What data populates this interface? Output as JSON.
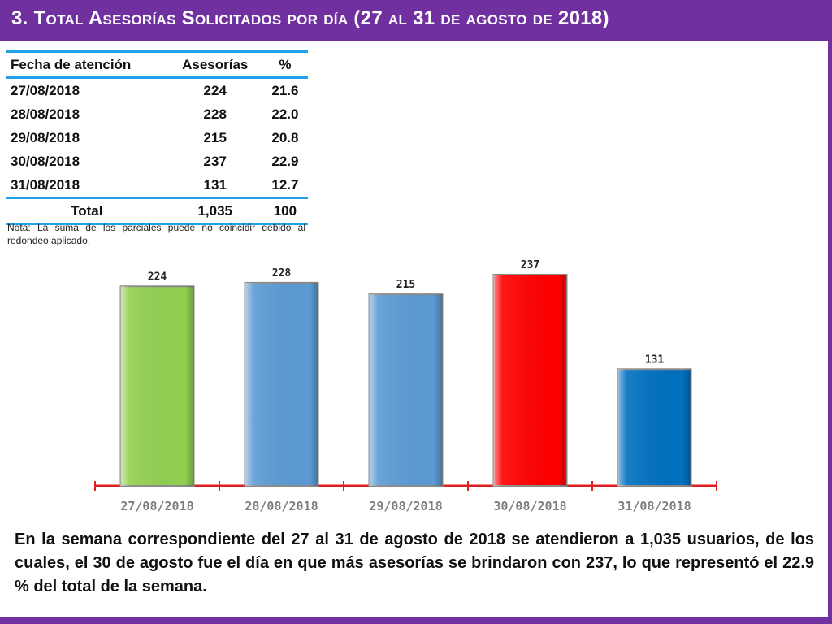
{
  "title": "3.  Total Asesorías Solicitados por día  (27 al 31 de agosto de 2018)",
  "table": {
    "headers": [
      "Fecha de atención",
      "Asesorías",
      "%"
    ],
    "rows": [
      [
        "27/08/2018",
        "224",
        "21.6"
      ],
      [
        "28/08/2018",
        "228",
        "22.0"
      ],
      [
        "29/08/2018",
        "215",
        "20.8"
      ],
      [
        "30/08/2018",
        "237",
        "22.9"
      ],
      [
        "31/08/2018",
        "131",
        "12.7"
      ]
    ],
    "total": [
      "Total",
      "1,035",
      "100"
    ]
  },
  "note": "Nota: La suma de los parciales puede no coincidir debido al redondeo aplicado.",
  "chart_data": {
    "type": "bar",
    "categories": [
      "27/08/2018",
      "28/08/2018",
      "29/08/2018",
      "30/08/2018",
      "31/08/2018"
    ],
    "values": [
      224,
      228,
      215,
      237,
      131
    ],
    "data_labels": [
      "224",
      "228",
      "215",
      "237",
      "131"
    ],
    "colors": [
      "#92d050",
      "#5b9bd5",
      "#5b9bd5",
      "#ff0000",
      "#0070c0"
    ],
    "axis_color": "#e02020",
    "grid": false,
    "legend": "none",
    "ylim": [
      0,
      237
    ]
  },
  "summary": "En la semana correspondiente del 27 al 31 de agosto de 2018 se atendieron a 1,035 usuarios, de los cuales, el 30 de agosto fue el día en que más asesorías se brindaron con 237, lo que representó el 22.9 % del total de la semana.",
  "colors": {
    "accent": "#7030a0",
    "table_rule": "#1fa2e8"
  }
}
